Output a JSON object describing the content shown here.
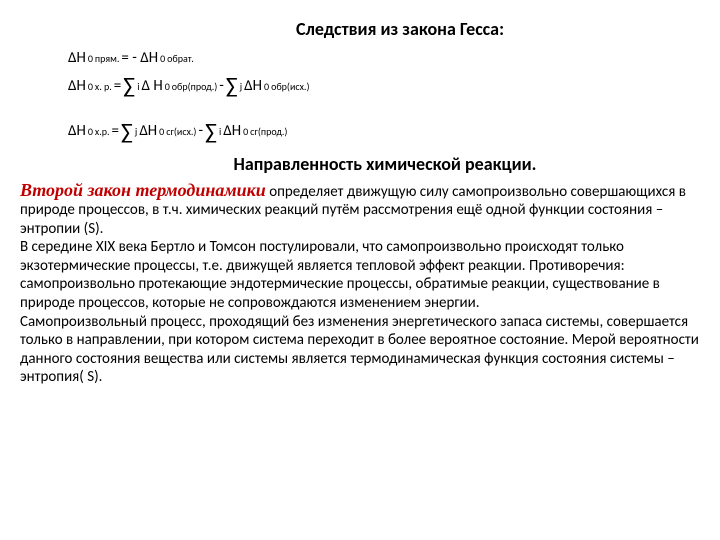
{
  "title": "Следствия из закона Гесса:",
  "formulas": {
    "f1a": "∆H",
    "sup0": "0",
    "sub_pryam": "прям.",
    "eq_neg": " = -     ∆H",
    "sub_obrat": "обрат.",
    "f2_left": "∆H",
    "sub_xr": "х. р.",
    "eq": "= ",
    "sigma": "∑",
    "i": " i ",
    "dH": " ∆ H",
    "sub_obr_prod": "обр(прод.)",
    "minus": " -  ",
    "j": " j ",
    "dH2": "∆H",
    "sub_obr_isx": "обр(исх.)",
    "sub_xrp": "х.р.",
    "eq2": " =    ",
    "sub_sg_isx": "сг(исх.)",
    "sub_sg_prod": "сг(прод.)"
  },
  "heading": "Направленность химической реакции.",
  "law_phrase": "Второй закон термодинамики",
  "body": " определяет движущую силу самопроизвольно совершающихся в природе процессов, в т.ч. химических реакций путём рассмотрения ещё одной функции состояния – энтропии (S).\nВ середине XIX века Бертло и Томсон постулировали, что самопроизвольно происходят только экзотермические процессы, т.е. движущей является тепловой эффект реакции. Противоречия:  самопроизвольно протекающие эндотермические процессы, обратимые реакции, существование в природе процессов, которые не сопровождаются изменением энергии.\nСамопроизвольный процесс, проходящий без изменения энергетического запаса системы, совершается только в направлении, при котором система переходит в более вероятное состояние. Мерой вероятности данного состояния вещества или системы является термодинамическая функция состояния системы – энтропия( S)."
}
